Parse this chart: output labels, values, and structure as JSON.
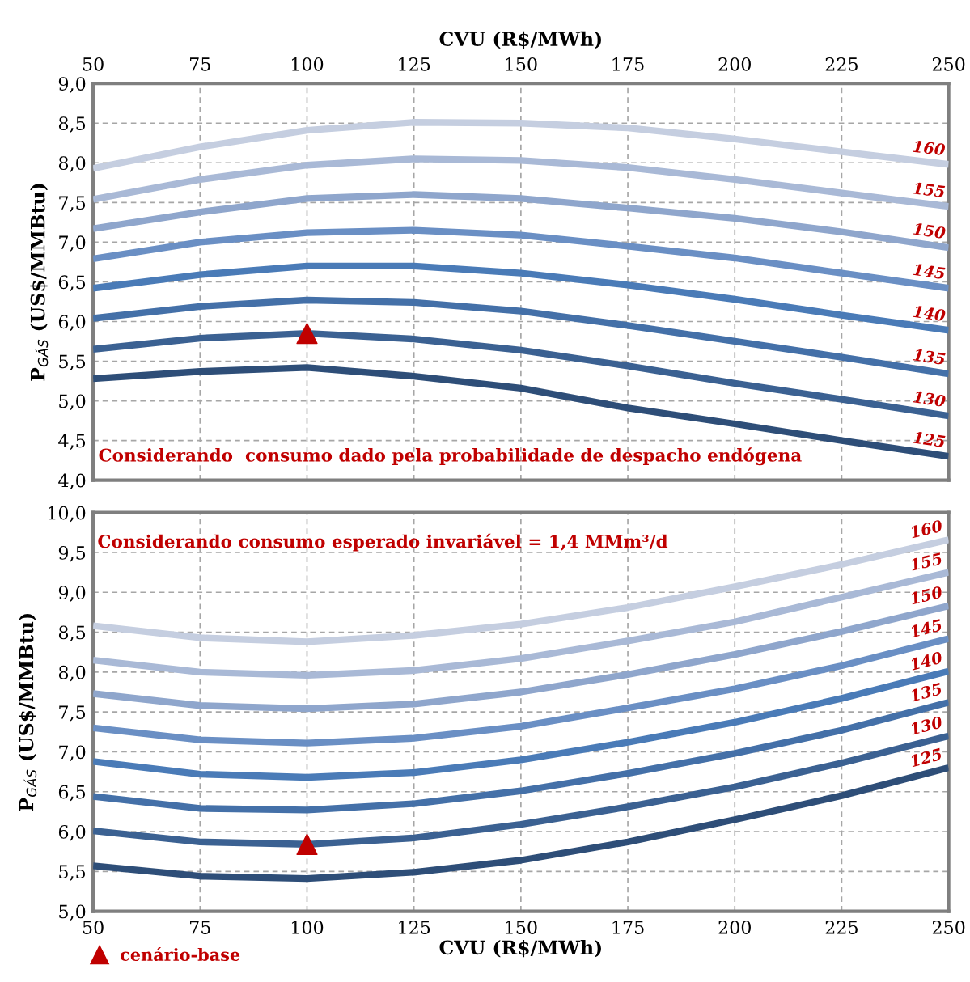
{
  "chart_data": [
    {
      "type": "line",
      "x2label": "CVU (R$/MWh)",
      "ylabel": "P$_{GÁS}$ (US$/MMBtu)",
      "x": [
        50,
        75,
        100,
        125,
        150,
        175,
        200,
        225,
        250
      ],
      "xlim": [
        50,
        250
      ],
      "xticks": [
        50,
        75,
        100,
        125,
        150,
        175,
        200,
        225,
        250
      ],
      "x2lim": [
        50,
        250
      ],
      "x2ticks": [
        50,
        75,
        100,
        125,
        150,
        175,
        200,
        225,
        250
      ],
      "ylim": [
        4.0,
        9.0
      ],
      "yticks": [
        {
          "value": 4.0,
          "label": "4,0"
        },
        {
          "value": 4.5,
          "label": "4,5"
        },
        {
          "value": 5.0,
          "label": "5,0"
        },
        {
          "value": 5.5,
          "label": "5,5"
        },
        {
          "value": 6.0,
          "label": "6,0"
        },
        {
          "value": 6.5,
          "label": "6,5"
        },
        {
          "value": 7.0,
          "label": "7,0"
        },
        {
          "value": 7.5,
          "label": "7,5"
        },
        {
          "value": 8.0,
          "label": "8,0"
        },
        {
          "value": 8.5,
          "label": "8,5"
        },
        {
          "value": 9.0,
          "label": "9,0"
        }
      ],
      "tick_labels": "y",
      "grid": true,
      "line_style": "solid",
      "marker": "none",
      "annotations": [
        "Considerando  consumo dado pela probabilidade de despacho endógena"
      ],
      "series": [
        {
          "name": "160",
          "color": "#c5cee0",
          "values": [
            7.93,
            8.2,
            8.41,
            8.51,
            8.5,
            8.44,
            8.3,
            8.14,
            7.98
          ]
        },
        {
          "name": "155",
          "color": "#a9b9d6",
          "values": [
            7.54,
            7.79,
            7.97,
            8.05,
            8.03,
            7.94,
            7.79,
            7.62,
            7.45
          ]
        },
        {
          "name": "150",
          "color": "#8fa6cc",
          "values": [
            7.17,
            7.38,
            7.55,
            7.6,
            7.55,
            7.43,
            7.3,
            7.13,
            6.93
          ]
        },
        {
          "name": "145",
          "color": "#6a8fc4",
          "values": [
            6.79,
            7.0,
            7.12,
            7.15,
            7.09,
            6.95,
            6.8,
            6.61,
            6.42
          ]
        },
        {
          "name": "140",
          "color": "#4a7bb7",
          "values": [
            6.42,
            6.59,
            6.7,
            6.7,
            6.61,
            6.46,
            6.28,
            6.08,
            5.89
          ]
        },
        {
          "name": "135",
          "color": "#4470a8",
          "values": [
            6.04,
            6.19,
            6.27,
            6.24,
            6.13,
            5.95,
            5.75,
            5.55,
            5.34
          ]
        },
        {
          "name": "130",
          "color": "#3b6192",
          "values": [
            5.65,
            5.79,
            5.85,
            5.78,
            5.64,
            5.44,
            5.22,
            5.02,
            4.81
          ]
        },
        {
          "name": "125",
          "color": "#2e4e78",
          "values": [
            5.28,
            5.37,
            5.42,
            5.31,
            5.16,
            4.91,
            4.71,
            4.5,
            4.3
          ]
        },
        {
          "type": "scatter",
          "marker": "triangle",
          "color": "#c00000",
          "x": [
            100
          ],
          "values": [
            5.85
          ]
        }
      ]
    },
    {
      "type": "line",
      "xlabel": "CVU (R$/MWh)",
      "ylabel": "P$_{GÁS}$ (US$/MMBtu)",
      "x": [
        50,
        75,
        100,
        125,
        150,
        175,
        200,
        225,
        250
      ],
      "xlim": [
        50,
        250
      ],
      "xticks": [
        50,
        75,
        100,
        125,
        150,
        175,
        200,
        225,
        250
      ],
      "ylim": [
        5.0,
        10.0
      ],
      "yticks": [
        {
          "value": 5.0,
          "label": "5,0"
        },
        {
          "value": 5.5,
          "label": "5,5"
        },
        {
          "value": 6.0,
          "label": "6,0"
        },
        {
          "value": 6.5,
          "label": "6,5"
        },
        {
          "value": 7.0,
          "label": "7,0"
        },
        {
          "value": 7.5,
          "label": "7,5"
        },
        {
          "value": 8.0,
          "label": "8,0"
        },
        {
          "value": 8.5,
          "label": "8,5"
        },
        {
          "value": 9.0,
          "label": "9,0"
        },
        {
          "value": 9.5,
          "label": "9,5"
        },
        {
          "value": 10.0,
          "label": "10,0"
        }
      ],
      "grid": true,
      "line_style": "solid",
      "marker": "none",
      "legend": "bottom left",
      "annotations": [
        "Considerando consumo esperado invariável = 1,4 MMm³/d"
      ],
      "series": [
        {
          "name": "160",
          "color": "#c5cee0",
          "values": [
            8.58,
            8.43,
            8.38,
            8.46,
            8.6,
            8.81,
            9.07,
            9.35,
            9.66
          ]
        },
        {
          "name": "155",
          "color": "#a9b9d6",
          "values": [
            8.15,
            8.0,
            7.96,
            8.02,
            8.17,
            8.39,
            8.63,
            8.94,
            9.25
          ]
        },
        {
          "name": "150",
          "color": "#8fa6cc",
          "values": [
            7.73,
            7.58,
            7.54,
            7.6,
            7.75,
            7.97,
            8.22,
            8.51,
            8.83
          ]
        },
        {
          "name": "145",
          "color": "#6a8fc4",
          "values": [
            7.3,
            7.15,
            7.11,
            7.17,
            7.32,
            7.55,
            7.79,
            8.08,
            8.42
          ]
        },
        {
          "name": "140",
          "color": "#4a7bb7",
          "values": [
            6.88,
            6.72,
            6.68,
            6.74,
            6.9,
            7.12,
            7.37,
            7.67,
            8.01
          ]
        },
        {
          "name": "135",
          "color": "#4470a8",
          "values": [
            6.44,
            6.29,
            6.27,
            6.35,
            6.51,
            6.73,
            6.98,
            7.27,
            7.62
          ]
        },
        {
          "name": "130",
          "color": "#3b6192",
          "values": [
            6.01,
            5.87,
            5.84,
            5.92,
            6.09,
            6.31,
            6.56,
            6.86,
            7.2
          ]
        },
        {
          "name": "125",
          "color": "#2e4e78",
          "values": [
            5.57,
            5.44,
            5.41,
            5.49,
            5.64,
            5.87,
            6.15,
            6.45,
            6.8
          ]
        },
        {
          "type": "scatter",
          "name": "cenário-base",
          "marker": "triangle",
          "color": "#c00000",
          "x": [
            100
          ],
          "values": [
            5.84
          ]
        }
      ]
    }
  ]
}
